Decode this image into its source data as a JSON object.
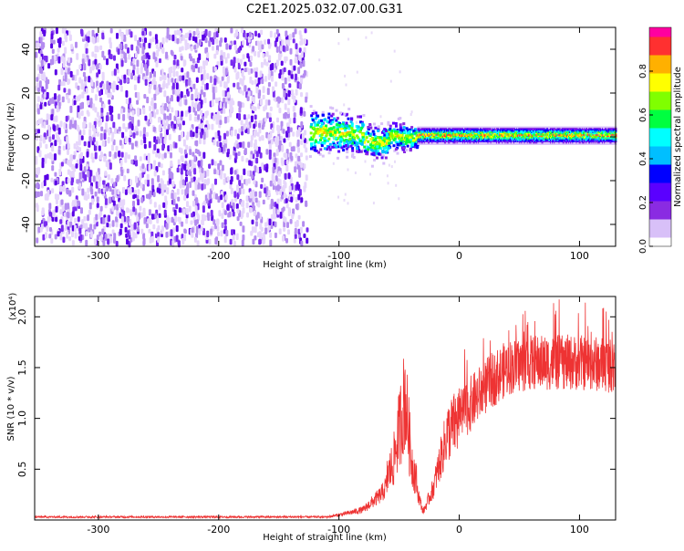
{
  "title": "C2E1.2025.032.07.00.G31",
  "chart_data": [
    {
      "type": "heatmap",
      "xlabel": "Height of straight line (km)",
      "ylabel": "Frequency (Hz)",
      "xlim": [
        -353,
        130
      ],
      "ylim": [
        -50,
        50
      ],
      "x_ticks": [
        -300,
        -200,
        -100,
        0,
        100
      ],
      "y_ticks": [
        -40,
        -20,
        0,
        20,
        40
      ],
      "noise_region": {
        "x_range": [
          -353,
          -125
        ],
        "description_level": 0.25
      },
      "transition_region": {
        "x_range": [
          -125,
          -35
        ],
        "freq_center": [
          3,
          0
        ],
        "freq_spread_hz": 8
      },
      "signal_band": {
        "x_range": [
          -35,
          130
        ],
        "freq_center": 1,
        "half_width_hz": 3,
        "peak_amplitude": 1.0
      },
      "colorbar": {
        "label": "Normalized spectral amplitude",
        "ticks": [
          0.0,
          0.2,
          0.4,
          0.6,
          0.8
        ],
        "range": [
          0,
          1
        ],
        "colors": [
          "#ffffff",
          "#d8c0f8",
          "#8a2be2",
          "#5a00ff",
          "#0000ff",
          "#00bfff",
          "#00ffff",
          "#00ff40",
          "#80ff00",
          "#ffff00",
          "#ffb000",
          "#ff3030",
          "#ff00a0"
        ]
      }
    },
    {
      "type": "line",
      "xlabel": "Height of straight line (km)",
      "ylabel": "SNR (10 * v/v)",
      "y_multiplier": "(x10⁴)",
      "xlim": [
        -353,
        130
      ],
      "ylim": [
        0,
        2.2
      ],
      "x_ticks": [
        -300,
        -200,
        -100,
        0,
        100
      ],
      "y_ticks": [
        0.5,
        1.0,
        1.5,
        2.0
      ],
      "color": "#ee3333",
      "series_envelope": [
        {
          "x": -353,
          "y": 0.03
        },
        {
          "x": -110,
          "y": 0.03
        },
        {
          "x": -100,
          "y": 0.05
        },
        {
          "x": -80,
          "y": 0.1
        },
        {
          "x": -65,
          "y": 0.25
        },
        {
          "x": -55,
          "y": 0.45
        },
        {
          "x": -45,
          "y": 1.0
        },
        {
          "x": -40,
          "y": 0.5
        },
        {
          "x": -30,
          "y": 0.08
        },
        {
          "x": -22,
          "y": 0.3
        },
        {
          "x": -10,
          "y": 0.85
        },
        {
          "x": 0,
          "y": 1.0
        },
        {
          "x": 10,
          "y": 1.15
        },
        {
          "x": 25,
          "y": 1.35
        },
        {
          "x": 40,
          "y": 1.5
        },
        {
          "x": 60,
          "y": 1.55
        },
        {
          "x": 80,
          "y": 1.55
        },
        {
          "x": 100,
          "y": 1.55
        },
        {
          "x": 130,
          "y": 1.52
        }
      ]
    }
  ]
}
